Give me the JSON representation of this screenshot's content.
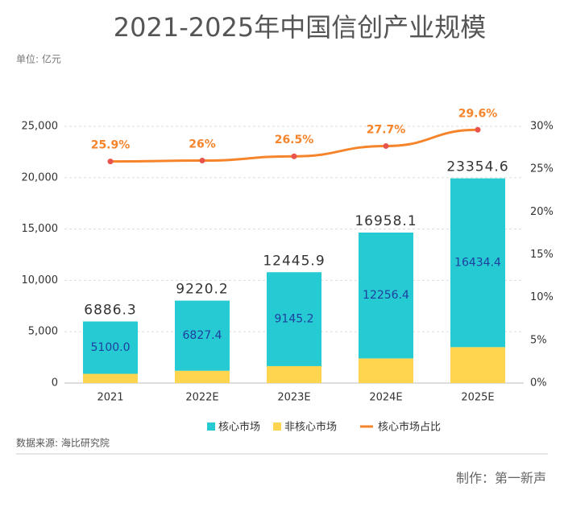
{
  "chart_data": {
    "type": "bar",
    "title": "2021-2025年中国信创产业规模",
    "unit": "单位: 亿元",
    "source": "数据来源: 海比研究院",
    "credit": "制作：第一新声",
    "categories": [
      "2021",
      "2022E",
      "2023E",
      "2024E",
      "2025E"
    ],
    "totals": [
      6886.3,
      9220.2,
      12445.9,
      16958.1,
      23354.6
    ],
    "series": [
      {
        "name": "非核心市场",
        "color": "#ffd54f",
        "values": [
          900,
          1200,
          1650,
          2400,
          3500
        ]
      },
      {
        "name": "核心市场",
        "color": "#26cad3",
        "values": [
          5100.0,
          6827.4,
          9145.2,
          12256.4,
          16434.4
        ],
        "value_labels": [
          "5100.0",
          "6827.4",
          "9145.2",
          "12256.4",
          "16434.4"
        ]
      },
      {
        "name": "核心市场占比",
        "color": "#f5842b",
        "axis": "y2",
        "values": [
          25.9,
          26,
          26.5,
          27.7,
          29.6
        ],
        "value_labels": [
          "25.9%",
          "26%",
          "26.5%",
          "27.7%",
          "29.6%"
        ]
      }
    ],
    "ylim": [
      0,
      25000
    ],
    "yticks": [
      0,
      {
        "value": 5000,
        "label": "5,000"
      },
      {
        "value": 10000,
        "label": "10,000"
      },
      {
        "value": 15000,
        "label": "15,000"
      },
      {
        "value": 20000,
        "label": "20,000"
      },
      {
        "value": 25000,
        "label": "25,000"
      }
    ],
    "y2lim": [
      0,
      30
    ],
    "y2ticks": [
      {
        "value": 0,
        "label": "0%"
      },
      {
        "value": 5,
        "label": "5%"
      },
      {
        "value": 10,
        "label": "10%"
      },
      {
        "value": 15,
        "label": "15%"
      },
      {
        "value": 20,
        "label": "20%"
      },
      {
        "value": 25,
        "label": "25%"
      },
      {
        "value": 30,
        "label": "30%"
      }
    ],
    "grid": true
  }
}
